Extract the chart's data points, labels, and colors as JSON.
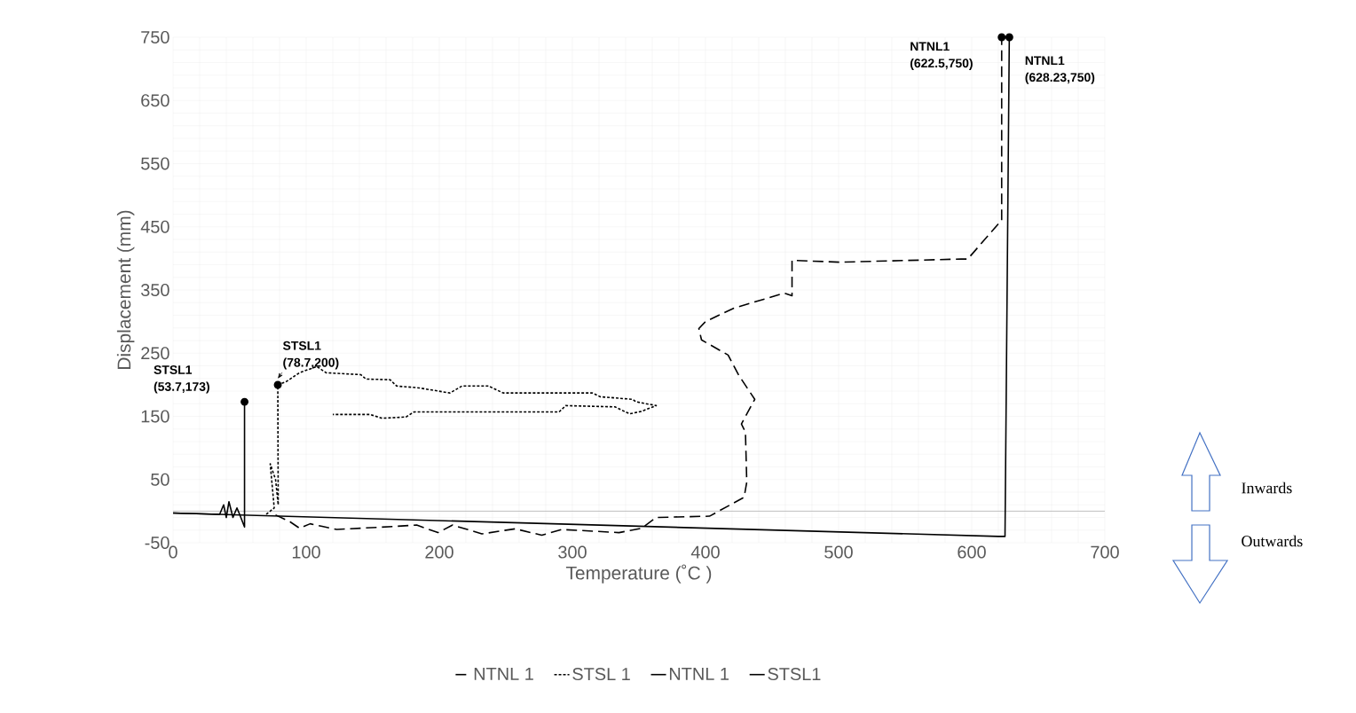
{
  "chart_data": {
    "type": "line",
    "xlabel": "Temperature (˚C )",
    "ylabel": "Displacement (mm)",
    "xlim": [
      0,
      700
    ],
    "ylim": [
      -50,
      750
    ],
    "xticks": [
      0,
      100,
      200,
      300,
      400,
      500,
      600,
      700
    ],
    "yticks": [
      -50,
      50,
      150,
      250,
      350,
      450,
      550,
      650,
      750
    ],
    "grid": true,
    "legend": "bottom",
    "ref_lines": [
      {
        "axis": "y",
        "value": 0,
        "color": "#bfbfbf"
      }
    ],
    "series": [
      {
        "name": "NTNL 1",
        "color": "#000000",
        "line_style": "dashed",
        "x": [
          77,
          88,
          95,
          103,
          112,
          123,
          168,
          183,
          199,
          210,
          232,
          257,
          277,
          292,
          335,
          352,
          363,
          403,
          429,
          431,
          430,
          427,
          437,
          425,
          417,
          397,
          395,
          400,
          421,
          459,
          465,
          465,
          501,
          592,
          597,
          621,
          622.5,
          622.5
        ],
        "values": [
          -6,
          -17,
          -27,
          -20,
          -24,
          -29,
          -24,
          -22,
          -34,
          -22,
          -36,
          -28,
          -38,
          -29,
          -34,
          -27,
          -10,
          -8,
          22,
          46,
          125,
          138,
          177,
          215,
          247,
          271,
          289,
          300,
          321,
          345,
          341,
          397,
          394,
          399,
          399,
          457,
          460,
          750
        ]
      },
      {
        "name": "STSL 1",
        "color": "#000000",
        "line_style": "dotted",
        "x": [
          70,
          76,
          73,
          77,
          79,
          78.7,
          85,
          95,
          108,
          115,
          141,
          145,
          163,
          168,
          185,
          208,
          217,
          237,
          248,
          315,
          321,
          345,
          348,
          363,
          352,
          343,
          332,
          295,
          290,
          181,
          175,
          157,
          148,
          120
        ],
        "values": [
          -5,
          5,
          75,
          50,
          10,
          200,
          205,
          219,
          229,
          219,
          216,
          209,
          208,
          198,
          195,
          187,
          198,
          198,
          187,
          187,
          181,
          177,
          173,
          167,
          158,
          154,
          165,
          167,
          157,
          157,
          149,
          147,
          153,
          153
        ]
      },
      {
        "name": "NTNL 1",
        "color": "#000000",
        "line_style": "solid",
        "x": [
          0,
          620,
          625,
          628.23
        ],
        "values": [
          -3,
          -40,
          -40,
          750
        ]
      },
      {
        "name": "STSL1",
        "color": "#000000",
        "line_style": "solid",
        "x": [
          0,
          35,
          38,
          40,
          42,
          45,
          48,
          50,
          53.7,
          53.7
        ],
        "values": [
          -3,
          -5,
          10,
          -10,
          15,
          -10,
          5,
          -5,
          -25,
          173
        ]
      }
    ],
    "annotations": [
      {
        "text": "STSL1 (53.7,173)",
        "x": 53.7,
        "y": 173
      },
      {
        "text": "STSL1 (78.7,200)",
        "x": 78.7,
        "y": 200
      },
      {
        "text": "NTNL1 (622.5,750)",
        "x": 622.5,
        "y": 750
      },
      {
        "text": "NTNL1 (628.23,750)",
        "x": 628.23,
        "y": 750
      },
      "Inwards",
      "Outwards"
    ]
  }
}
